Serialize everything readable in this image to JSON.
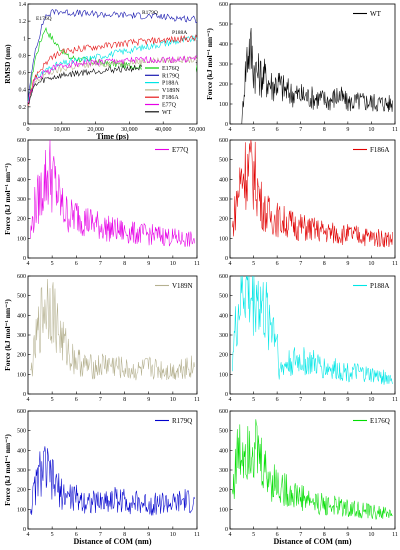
{
  "figure": {
    "shared_xlabel_left": "Distance of COM (nm)",
    "shared_xlabel_right": "Distance of COM (nm)"
  },
  "chart_data": [
    {
      "id": "rmsd",
      "type": "line",
      "title": "",
      "xlabel": "Time (ps)",
      "ylabel": "RMSD (nm)",
      "xlim": [
        0,
        50000
      ],
      "ylim": [
        0,
        1.4
      ],
      "xticks": [
        "0",
        "10,000",
        "20,000",
        "30,000",
        "40,000",
        "50,000"
      ],
      "yticks": [
        "0",
        "0.2",
        "0.4",
        "0.6",
        "0.8",
        "1",
        "1.2",
        "1.4"
      ],
      "legend_placement": "bottom-right",
      "annotations": [
        "E176Q",
        "R179Q",
        "P188A"
      ],
      "series": [
        {
          "name": "E176Q",
          "color": "#00cc00",
          "x": [
            0,
            2000,
            5000,
            8000,
            12000,
            20000,
            30000,
            40000,
            50000
          ],
          "y": [
            0.25,
            0.75,
            1.12,
            0.95,
            0.78,
            0.72,
            0.68,
            0.66,
            0.65
          ]
        },
        {
          "name": "R179Q",
          "color": "#1a1ab0",
          "x": [
            0,
            2000,
            5000,
            8000,
            12000,
            20000,
            30000,
            40000,
            50000
          ],
          "y": [
            0.28,
            0.85,
            1.25,
            1.32,
            1.3,
            1.28,
            1.27,
            1.25,
            1.22
          ]
        },
        {
          "name": "P188A",
          "color": "#00e5e5",
          "x": [
            0,
            2000,
            5000,
            8000,
            12000,
            20000,
            30000,
            40000,
            50000
          ],
          "y": [
            0.26,
            0.52,
            0.62,
            0.68,
            0.72,
            0.78,
            0.86,
            0.94,
            1.0
          ]
        },
        {
          "name": "V189N",
          "color": "#b8b38a",
          "x": [
            0,
            2000,
            5000,
            8000,
            12000,
            20000,
            30000,
            40000,
            50000
          ],
          "y": [
            0.24,
            0.48,
            0.58,
            0.62,
            0.66,
            0.7,
            0.72,
            0.74,
            0.75
          ]
        },
        {
          "name": "F186A",
          "color": "#e61919",
          "x": [
            0,
            2000,
            5000,
            8000,
            12000,
            20000,
            30000,
            40000,
            50000
          ],
          "y": [
            0.25,
            0.55,
            0.7,
            0.8,
            0.86,
            0.9,
            0.95,
            0.98,
            1.0
          ]
        },
        {
          "name": "E77Q",
          "color": "#e600e6",
          "x": [
            0,
            2000,
            5000,
            8000,
            12000,
            20000,
            30000,
            40000,
            50000
          ],
          "y": [
            0.26,
            0.5,
            0.6,
            0.66,
            0.7,
            0.72,
            0.74,
            0.75,
            0.76
          ]
        },
        {
          "name": "WT",
          "color": "#111111",
          "x": [
            0,
            2000,
            5000,
            8000,
            12000,
            20000,
            30000,
            40000,
            50000
          ],
          "y": [
            0.24,
            0.45,
            0.52,
            0.55,
            0.58,
            0.62,
            0.65,
            0.66,
            0.68
          ]
        }
      ]
    },
    {
      "id": "wt",
      "type": "line",
      "title": "",
      "xlabel": "",
      "ylabel": "Force (kJ mol⁻¹ nm⁻¹)",
      "xlim": [
        4,
        11
      ],
      "ylim": [
        0,
        600
      ],
      "xticks": [
        "4",
        "5",
        "6",
        "7",
        "8",
        "9",
        "10",
        "11"
      ],
      "yticks": [
        "0",
        "100",
        "200",
        "300",
        "400",
        "500",
        "600"
      ],
      "legend_placement": "top-right",
      "series": [
        {
          "name": "WT",
          "color": "#000000",
          "x": [
            4.5,
            4.6,
            4.7,
            4.8,
            4.9,
            5.0,
            5.2,
            5.4,
            5.6,
            5.8,
            6.0,
            6.3,
            6.6,
            7.0,
            7.4,
            7.8,
            8.2,
            8.6,
            9.0,
            9.5,
            10.0,
            10.5,
            10.9
          ],
          "y": [
            0,
            200,
            330,
            410,
            380,
            300,
            260,
            250,
            230,
            200,
            220,
            180,
            160,
            150,
            140,
            135,
            120,
            150,
            110,
            120,
            115,
            110,
            105
          ]
        }
      ]
    },
    {
      "id": "e77q",
      "type": "line",
      "title": "",
      "xlabel": "",
      "ylabel": "Force (kJ mol⁻¹ nm⁻¹)",
      "xlim": [
        4,
        11
      ],
      "ylim": [
        0,
        600
      ],
      "xticks": [
        "4",
        "5",
        "6",
        "7",
        "8",
        "9",
        "10",
        "11"
      ],
      "yticks": [
        "0",
        "100",
        "200",
        "300",
        "400",
        "500",
        "600"
      ],
      "legend_placement": "top-right",
      "series": [
        {
          "name": "E77Q",
          "color": "#e600e6",
          "x": [
            4.1,
            4.3,
            4.5,
            4.7,
            4.9,
            5.1,
            5.3,
            5.5,
            5.8,
            6.1,
            6.4,
            6.8,
            7.2,
            7.6,
            8.0,
            8.5,
            9.0,
            9.5,
            10.0,
            10.5,
            10.9
          ],
          "y": [
            120,
            280,
            330,
            420,
            460,
            400,
            310,
            250,
            220,
            230,
            200,
            180,
            160,
            150,
            140,
            130,
            125,
            120,
            110,
            100,
            95
          ]
        }
      ]
    },
    {
      "id": "f186a",
      "type": "line",
      "title": "",
      "xlabel": "",
      "ylabel": "",
      "xlim": [
        4,
        11
      ],
      "ylim": [
        0,
        600
      ],
      "xticks": [
        "4",
        "5",
        "6",
        "7",
        "8",
        "9",
        "10",
        "11"
      ],
      "yticks": [
        "0",
        "100",
        "200",
        "300",
        "400",
        "500",
        "600"
      ],
      "legend_placement": "top-right",
      "series": [
        {
          "name": "F186A",
          "color": "#e00000",
          "x": [
            4.1,
            4.3,
            4.5,
            4.7,
            4.9,
            5.1,
            5.3,
            5.5,
            5.8,
            6.1,
            6.4,
            6.8,
            7.2,
            7.6,
            8.0,
            8.5,
            9.0,
            9.5,
            10.0,
            10.5,
            10.9
          ],
          "y": [
            150,
            320,
            440,
            470,
            480,
            420,
            300,
            240,
            220,
            200,
            190,
            170,
            160,
            150,
            140,
            130,
            125,
            120,
            110,
            105,
            100
          ]
        }
      ]
    },
    {
      "id": "v189n",
      "type": "line",
      "title": "",
      "xlabel": "",
      "ylabel": "Force (kJ mol⁻¹ nm⁻¹)",
      "xlim": [
        4,
        11
      ],
      "ylim": [
        0,
        600
      ],
      "xticks": [
        "4",
        "5",
        "6",
        "7",
        "8",
        "9",
        "10",
        "11"
      ],
      "yticks": [
        "0",
        "100",
        "200",
        "300",
        "400",
        "500",
        "600"
      ],
      "legend_placement": "top-right",
      "series": [
        {
          "name": "V189N",
          "color": "#b5b190",
          "x": [
            4.1,
            4.3,
            4.5,
            4.7,
            4.9,
            5.1,
            5.3,
            5.5,
            5.8,
            6.1,
            6.4,
            6.8,
            7.2,
            7.6,
            8.0,
            8.5,
            9.0,
            9.5,
            10.0,
            10.5,
            10.9
          ],
          "y": [
            100,
            250,
            380,
            480,
            500,
            420,
            320,
            260,
            200,
            170,
            150,
            140,
            160,
            150,
            130,
            120,
            140,
            130,
            120,
            150,
            140
          ]
        }
      ]
    },
    {
      "id": "p188a",
      "type": "line",
      "title": "",
      "xlabel": "",
      "ylabel": "",
      "xlim": [
        4,
        11
      ],
      "ylim": [
        0,
        600
      ],
      "xticks": [
        "4",
        "5",
        "6",
        "7",
        "8",
        "9",
        "10",
        "11"
      ],
      "yticks": [
        "0",
        "100",
        "200",
        "300",
        "400",
        "500",
        "600"
      ],
      "legend_placement": "top-right",
      "series": [
        {
          "name": "P188A",
          "color": "#00e6e6",
          "x": [
            4.1,
            4.3,
            4.5,
            4.7,
            4.9,
            5.1,
            5.3,
            5.5,
            5.8,
            6.0,
            6.1,
            6.4,
            6.8,
            7.2,
            7.6,
            8.0,
            8.5,
            9.0,
            9.5,
            10.0,
            10.5,
            10.9
          ],
          "y": [
            200,
            400,
            550,
            580,
            500,
            560,
            470,
            420,
            380,
            300,
            120,
            160,
            180,
            170,
            160,
            140,
            130,
            120,
            110,
            100,
            90,
            80
          ]
        }
      ]
    },
    {
      "id": "r179q",
      "type": "line",
      "title": "",
      "xlabel": "Distance of COM (nm)",
      "ylabel": "Force (kJ mol⁻¹ nm⁻¹)",
      "xlim": [
        4,
        11
      ],
      "ylim": [
        0,
        600
      ],
      "xticks": [
        "4",
        "5",
        "6",
        "7",
        "8",
        "9",
        "10",
        "11"
      ],
      "yticks": [
        "0",
        "100",
        "200",
        "300",
        "400",
        "500",
        "600"
      ],
      "legend_placement": "top-right",
      "series": [
        {
          "name": "R179Q",
          "color": "#0000cc",
          "x": [
            4.1,
            4.3,
            4.5,
            4.7,
            4.9,
            5.1,
            5.3,
            5.5,
            5.8,
            6.1,
            6.4,
            6.8,
            7.2,
            7.6,
            8.0,
            8.5,
            9.0,
            9.5,
            10.0,
            10.5,
            10.9
          ],
          "y": [
            100,
            220,
            300,
            320,
            280,
            240,
            200,
            180,
            170,
            160,
            150,
            140,
            150,
            160,
            150,
            140,
            130,
            140,
            130,
            150,
            130
          ]
        }
      ]
    },
    {
      "id": "e176q",
      "type": "line",
      "title": "",
      "xlabel": "Distance of COM (nm)",
      "ylabel": "",
      "xlim": [
        4,
        11
      ],
      "ylim": [
        0,
        600
      ],
      "xticks": [
        "4",
        "5",
        "6",
        "7",
        "8",
        "9",
        "10",
        "11"
      ],
      "yticks": [
        "0",
        "100",
        "200",
        "300",
        "400",
        "500",
        "600"
      ],
      "legend_placement": "top-right",
      "series": [
        {
          "name": "E176Q",
          "color": "#00dd00",
          "x": [
            4.1,
            4.3,
            4.5,
            4.7,
            4.9,
            5.1,
            5.3,
            5.5,
            5.8,
            6.1,
            6.4,
            6.8,
            7.2,
            7.6,
            8.0,
            8.5,
            9.0,
            9.5,
            10.0,
            10.5,
            10.9
          ],
          "y": [
            200,
            380,
            420,
            460,
            490,
            420,
            360,
            300,
            260,
            230,
            200,
            180,
            160,
            140,
            130,
            120,
            110,
            100,
            90,
            85,
            80
          ]
        }
      ]
    }
  ]
}
